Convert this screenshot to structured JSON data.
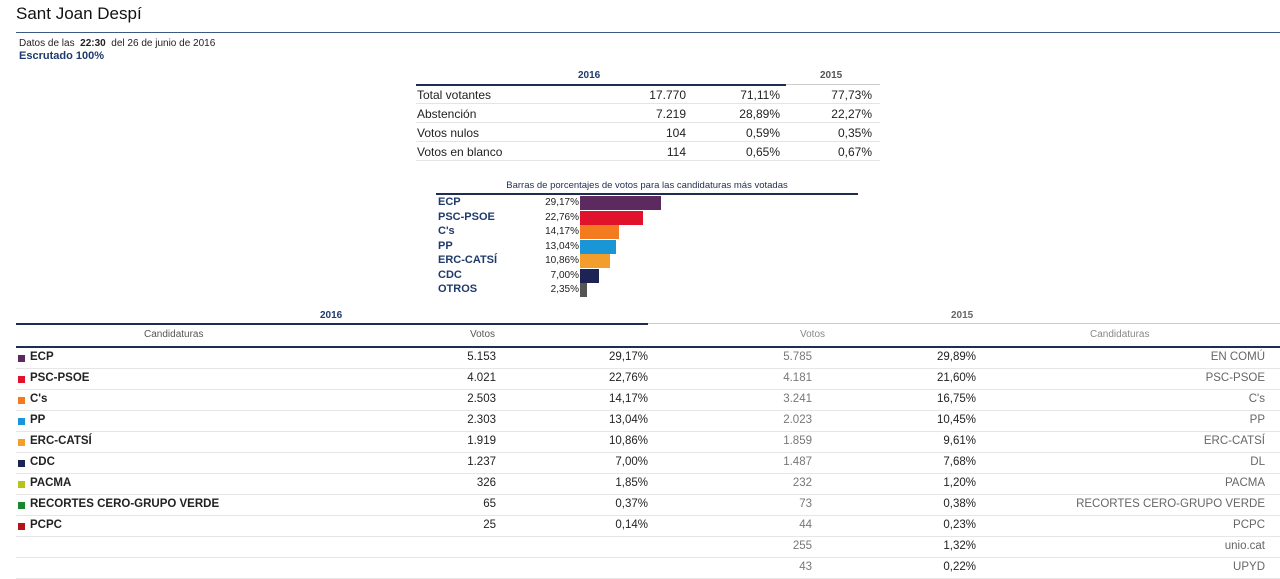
{
  "header": {
    "title": "Sant Joan Despí",
    "date_prefix": "Datos de las",
    "time": "22:30",
    "date_suffix": "del 26 de junio de 2016",
    "scrutiny": "Escrutado 100%"
  },
  "summary": {
    "year_2016": "2016",
    "year_2015": "2015",
    "rows": [
      {
        "label": "Total votantes",
        "votes": "17.770",
        "pct": "71,11%",
        "pct_2015": "77,73%"
      },
      {
        "label": "Abstención",
        "votes": "7.219",
        "pct": "28,89%",
        "pct_2015": "22,27%"
      },
      {
        "label": "Votos nulos",
        "votes": "104",
        "pct": "0,59%",
        "pct_2015": "0,35%"
      },
      {
        "label": "Votos en blanco",
        "votes": "114",
        "pct": "0,65%",
        "pct_2015": "0,67%"
      }
    ]
  },
  "chart_data": {
    "type": "bar",
    "title": "Barras de porcentajes de votos para las candidaturas más votadas",
    "categories": [
      "ECP",
      "PSC-PSOE",
      "C's",
      "PP",
      "ERC-CATSÍ",
      "CDC",
      "OTROS"
    ],
    "labels": [
      "29,17%",
      "22,76%",
      "14,17%",
      "13,04%",
      "10,86%",
      "7,00%",
      "2,35%"
    ],
    "values": [
      29.17,
      22.76,
      14.17,
      13.04,
      10.86,
      7.0,
      2.35
    ],
    "colors": [
      "#5c2a5e",
      "#e0122c",
      "#f47a20",
      "#1a95d6",
      "#f29d2c",
      "#1d2352",
      "#555555"
    ]
  },
  "results": {
    "year_2016": "2016",
    "year_2015": "2015",
    "col_candidaturas": "Candidaturas",
    "col_votos": "Votos",
    "col_votos_2015": "Votos",
    "col_candidaturas_2015": "Candidaturas",
    "rows": [
      {
        "name": "ECP",
        "color": "#5c2a5e",
        "v16": "5.153",
        "p16": "29,17%",
        "v15": "5.785",
        "p15": "29,89%",
        "n15": "EN COMÚ"
      },
      {
        "name": "PSC-PSOE",
        "color": "#e0122c",
        "v16": "4.021",
        "p16": "22,76%",
        "v15": "4.181",
        "p15": "21,60%",
        "n15": "PSC-PSOE"
      },
      {
        "name": "C's",
        "color": "#f47a20",
        "v16": "2.503",
        "p16": "14,17%",
        "v15": "3.241",
        "p15": "16,75%",
        "n15": "C's"
      },
      {
        "name": "PP",
        "color": "#1a95d6",
        "v16": "2.303",
        "p16": "13,04%",
        "v15": "2.023",
        "p15": "10,45%",
        "n15": "PP"
      },
      {
        "name": "ERC-CATSÍ",
        "color": "#f29d2c",
        "v16": "1.919",
        "p16": "10,86%",
        "v15": "1.859",
        "p15": "9,61%",
        "n15": "ERC-CATSÍ"
      },
      {
        "name": "CDC",
        "color": "#1d2352",
        "v16": "1.237",
        "p16": "7,00%",
        "v15": "1.487",
        "p15": "7,68%",
        "n15": "DL"
      },
      {
        "name": "PACMA",
        "color": "#b5c21f",
        "v16": "326",
        "p16": "1,85%",
        "v15": "232",
        "p15": "1,20%",
        "n15": "PACMA"
      },
      {
        "name": "RECORTES CERO-GRUPO VERDE",
        "color": "#17882e",
        "v16": "65",
        "p16": "0,37%",
        "v15": "73",
        "p15": "0,38%",
        "n15": "RECORTES CERO-GRUPO VERDE"
      },
      {
        "name": "PCPC",
        "color": "#b3141c",
        "v16": "25",
        "p16": "0,14%",
        "v15": "44",
        "p15": "0,23%",
        "n15": "PCPC"
      },
      {
        "name": "",
        "color": "",
        "v16": "",
        "p16": "",
        "v15": "255",
        "p15": "1,32%",
        "n15": "unio.cat"
      },
      {
        "name": "",
        "color": "",
        "v16": "",
        "p16": "",
        "v15": "43",
        "p15": "0,22%",
        "n15": "UPYD"
      }
    ]
  }
}
